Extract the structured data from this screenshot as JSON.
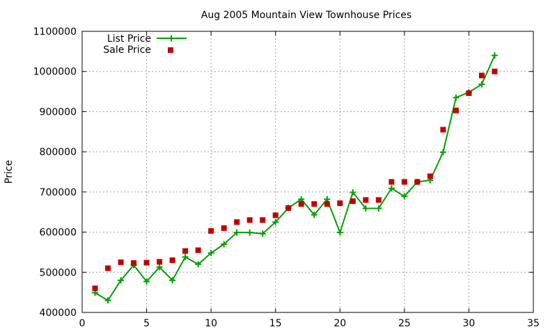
{
  "chart_data": {
    "type": "line",
    "title": "Aug 2005 Mountain View Townhouse Prices",
    "xlabel": "",
    "ylabel": "Price",
    "xlim": [
      0,
      35
    ],
    "ylim": [
      400000,
      1100000
    ],
    "xticks": [
      0,
      5,
      10,
      15,
      20,
      25,
      30,
      35
    ],
    "yticks": [
      400000,
      500000,
      600000,
      700000,
      800000,
      900000,
      1000000,
      1100000
    ],
    "grid": true,
    "legend": "top-left",
    "series": [
      {
        "name": "List Price",
        "style": "linespoints",
        "color": "#00a000",
        "x": [
          1,
          2,
          3,
          4,
          5,
          6,
          7,
          8,
          9,
          10,
          11,
          12,
          13,
          14,
          15,
          16,
          17,
          18,
          19,
          20,
          21,
          22,
          23,
          24,
          25,
          26,
          27,
          28,
          29,
          30,
          31,
          32
        ],
        "values": [
          449000,
          430000,
          480000,
          518000,
          477000,
          513000,
          480000,
          538000,
          520000,
          548000,
          570000,
          599000,
          599000,
          596000,
          625000,
          660000,
          682000,
          643000,
          682000,
          599000,
          699000,
          659000,
          659000,
          709000,
          689000,
          725000,
          729000,
          799000,
          935000,
          948000,
          968000,
          1040000
        ]
      },
      {
        "name": "Sale Price",
        "style": "points",
        "color": "#c00000",
        "x": [
          1,
          2,
          3,
          4,
          5,
          6,
          7,
          8,
          9,
          10,
          11,
          12,
          13,
          14,
          15,
          16,
          17,
          18,
          19,
          20,
          21,
          22,
          23,
          24,
          25,
          26,
          27,
          28,
          29,
          30,
          31,
          32
        ],
        "values": [
          460000,
          510000,
          525000,
          523000,
          524000,
          526000,
          530000,
          553000,
          555000,
          603000,
          610000,
          625000,
          630000,
          630000,
          642000,
          660000,
          670000,
          670000,
          670000,
          672000,
          677000,
          680000,
          680000,
          725000,
          725000,
          725000,
          739000,
          855000,
          903000,
          946000,
          990000,
          1000000
        ]
      }
    ]
  }
}
